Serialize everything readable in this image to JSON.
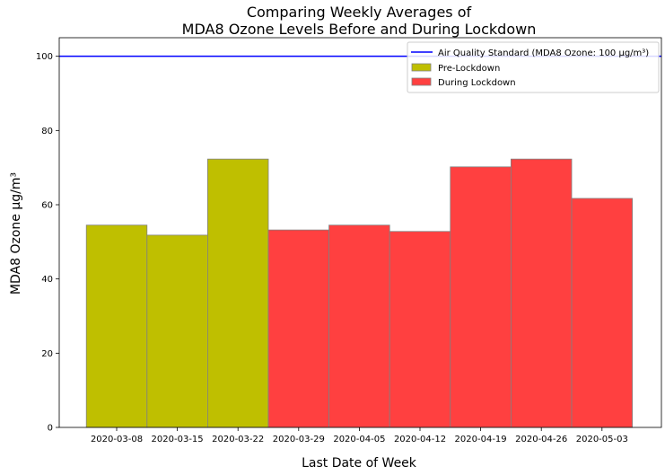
{
  "chart_data": {
    "type": "bar",
    "title_line1": "Comparing Weekly Averages of",
    "title_line2": "MDA8 Ozone Levels Before and During Lockdown",
    "xlabel": "Last Date of Week",
    "ylabel": "MDA8 Ozone μg/m³",
    "ylim": [
      0,
      105
    ],
    "yticks": [
      0,
      20,
      40,
      60,
      80,
      100
    ],
    "categories": [
      "2020-03-08",
      "2020-03-15",
      "2020-03-22",
      "2020-03-29",
      "2020-04-05",
      "2020-04-12",
      "2020-04-19",
      "2020-04-26",
      "2020-05-03"
    ],
    "values": [
      54.5,
      51.8,
      72.3,
      53.2,
      54.5,
      52.8,
      70.2,
      72.3,
      61.7
    ],
    "groups": [
      "pre",
      "pre",
      "pre",
      "during",
      "during",
      "during",
      "during",
      "during",
      "during"
    ],
    "series": [
      {
        "key": "pre",
        "name": "Pre-Lockdown",
        "color": "#bfbf00"
      },
      {
        "key": "during",
        "name": "During Lockdown",
        "color": "#ff4040"
      }
    ],
    "reference_line": {
      "value": 100,
      "label": "Air Quality Standard (MDA8 Ozone: 100 μg/m³)",
      "color": "#0000ff"
    },
    "legend_position": "top-right",
    "grid": false
  }
}
